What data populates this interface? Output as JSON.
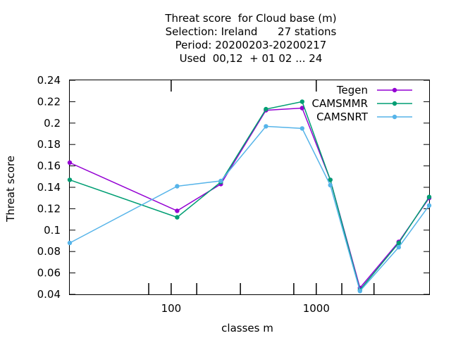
{
  "chart_data": {
    "type": "line",
    "title_lines": [
      "Threat score  for Cloud base (m)",
      "Selection: Ireland      27 stations",
      "Period: 20200203-20200217",
      "Used  00,12  + 01 02 ... 24"
    ],
    "xlabel": "classes m",
    "ylabel": "Threat score",
    "x_scale": "log",
    "xlim": [
      20,
      6000
    ],
    "ylim": [
      0.04,
      0.24
    ],
    "y_ticks": [
      "0.04",
      "0.06",
      "0.08",
      "0.1",
      "0.12",
      "0.14",
      "0.16",
      "0.18",
      "0.2",
      "0.22",
      "0.24"
    ],
    "x_tick_labels": [
      "100",
      "1000"
    ],
    "x_tick_values": [
      100,
      1000
    ],
    "x_minor_ticks": [
      70,
      150,
      300,
      700,
      1500,
      2500
    ],
    "grid": false,
    "legend_position": "top-right",
    "x": [
      20,
      110,
      220,
      450,
      800,
      1250,
      2000,
      3700,
      6000
    ],
    "series": [
      {
        "name": "Tegen",
        "color": "#9400d3",
        "values": [
          0.163,
          0.118,
          0.143,
          0.212,
          0.214,
          0.147,
          0.046,
          0.089,
          0.13
        ]
      },
      {
        "name": "CAMSMMR",
        "color": "#009e73",
        "values": [
          0.147,
          0.112,
          0.145,
          0.213,
          0.22,
          0.147,
          0.044,
          0.088,
          0.131
        ]
      },
      {
        "name": "CAMSNRT",
        "color": "#56b4e9",
        "values": [
          0.088,
          0.141,
          0.146,
          0.197,
          0.195,
          0.142,
          0.043,
          0.084,
          0.123
        ]
      }
    ]
  }
}
